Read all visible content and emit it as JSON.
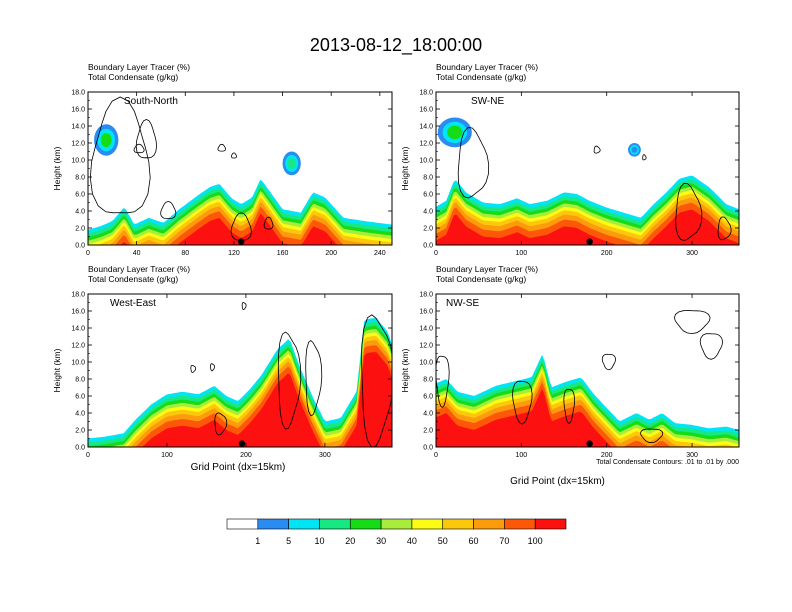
{
  "title": "2013-08-12_18:00:00",
  "colors": {
    "levels": [
      "#ffffff",
      "#2a8cf2",
      "#00e4f4",
      "#18e884",
      "#16dc16",
      "#a8ec3c",
      "#fcfc14",
      "#fcc80c",
      "#fc9c0c",
      "#fc5808",
      "#fc1010"
    ],
    "contour": "#000000"
  },
  "chart_data": [
    {
      "type": "heatmap",
      "panel": "South-North",
      "label": "South-North",
      "var1": "Boundary Layer Tracer   (%)",
      "var2": "Total Condensate   (g/kg)",
      "ylabel": "Height (km)",
      "xlim": [
        0,
        250
      ],
      "ylim": [
        0,
        18
      ],
      "xticks": [
        "0",
        "40",
        "80",
        "120",
        "160",
        "200",
        "240"
      ],
      "xtick_values": [
        0,
        40,
        80,
        120,
        160,
        200,
        240
      ],
      "yticks": [
        "0.0",
        "2.0",
        "4.0",
        "6.0",
        "8.0",
        "10.0",
        "12.0",
        "14.0",
        "16.0",
        "18.0"
      ],
      "marker_x": 126,
      "profile": [
        [
          0,
          1.8
        ],
        [
          10,
          2.2
        ],
        [
          20,
          2.8
        ],
        [
          30,
          4.5
        ],
        [
          38,
          2.4
        ],
        [
          50,
          3.2
        ],
        [
          62,
          2.6
        ],
        [
          75,
          4.2
        ],
        [
          90,
          5.8
        ],
        [
          100,
          6.8
        ],
        [
          108,
          7.2
        ],
        [
          118,
          5.5
        ],
        [
          126,
          4.8
        ],
        [
          135,
          5.6
        ],
        [
          142,
          7.8
        ],
        [
          150,
          6.2
        ],
        [
          160,
          4.2
        ],
        [
          175,
          3.8
        ],
        [
          185,
          6.2
        ],
        [
          195,
          5.6
        ],
        [
          210,
          3.2
        ],
        [
          228,
          2.8
        ],
        [
          250,
          2.4
        ]
      ],
      "blobs": [
        {
          "x0": 5,
          "x1": 25,
          "y0": 10.5,
          "y1": 14.2,
          "v": 30
        },
        {
          "x0": 160,
          "x1": 175,
          "y0": 8.2,
          "y1": 11.0,
          "v": 20
        }
      ],
      "contours": [
        {
          "x0": 3,
          "x1": 50,
          "y0": 3.0,
          "y1": 16.6
        },
        {
          "x0": 40,
          "x1": 56,
          "y0": 10.0,
          "y1": 14.5
        },
        {
          "x0": 38,
          "x1": 46,
          "y0": 10.8,
          "y1": 11.8
        },
        {
          "x0": 107,
          "x1": 113,
          "y0": 11.0,
          "y1": 11.8
        },
        {
          "x0": 118,
          "x1": 122,
          "y0": 10.2,
          "y1": 10.8
        },
        {
          "x0": 118,
          "x1": 134,
          "y0": 0.4,
          "y1": 3.6
        },
        {
          "x0": 145,
          "x1": 152,
          "y0": 1.8,
          "y1": 3.2
        },
        {
          "x0": 60,
          "x1": 72,
          "y0": 3.0,
          "y1": 5.0
        }
      ]
    },
    {
      "type": "heatmap",
      "panel": "SW-NE",
      "label": "SW-NE",
      "var1": "Boundary Layer Tracer   (%)",
      "var2": "Total Condensate   (g/kg)",
      "ylabel": "Height (km)",
      "xlim": [
        0,
        355
      ],
      "ylim": [
        0,
        18
      ],
      "xticks": [
        "0",
        "100",
        "200",
        "300"
      ],
      "xtick_values": [
        0,
        100,
        200,
        300
      ],
      "yticks": [
        "0.0",
        "2.0",
        "4.0",
        "6.0",
        "8.0",
        "10.0",
        "12.0",
        "14.0",
        "16.0",
        "18.0"
      ],
      "marker_x": 180,
      "profile": [
        [
          0,
          4.5
        ],
        [
          12,
          5.2
        ],
        [
          22,
          7.8
        ],
        [
          35,
          6.2
        ],
        [
          55,
          5.0
        ],
        [
          75,
          4.8
        ],
        [
          95,
          5.5
        ],
        [
          110,
          4.8
        ],
        [
          130,
          5.2
        ],
        [
          150,
          6.2
        ],
        [
          165,
          6.0
        ],
        [
          180,
          5.2
        ],
        [
          200,
          4.4
        ],
        [
          220,
          3.8
        ],
        [
          240,
          3.2
        ],
        [
          255,
          4.8
        ],
        [
          270,
          6.2
        ],
        [
          285,
          7.8
        ],
        [
          300,
          8.2
        ],
        [
          320,
          6.8
        ],
        [
          340,
          4.8
        ],
        [
          355,
          4.2
        ]
      ],
      "blobs": [
        {
          "x0": 2,
          "x1": 42,
          "y0": 11.5,
          "y1": 15.0,
          "v": 30
        },
        {
          "x0": 225,
          "x1": 240,
          "y0": 10.4,
          "y1": 12.0,
          "v": 5
        }
      ],
      "contours": [
        {
          "x0": 25,
          "x1": 60,
          "y0": 5.5,
          "y1": 13.5
        },
        {
          "x0": 185,
          "x1": 192,
          "y0": 10.8,
          "y1": 11.6
        },
        {
          "x0": 242,
          "x1": 246,
          "y0": 10.0,
          "y1": 10.6
        },
        {
          "x0": 280,
          "x1": 310,
          "y0": 0.5,
          "y1": 7.0
        },
        {
          "x0": 330,
          "x1": 345,
          "y0": 0.6,
          "y1": 3.2
        }
      ]
    },
    {
      "type": "heatmap",
      "panel": "West-East",
      "label": "West-East",
      "var1": "Boundary Layer Tracer   (%)",
      "var2": "Total Condensate   (g/kg)",
      "ylabel": "Height (km)",
      "xlim": [
        0,
        385
      ],
      "ylim": [
        0,
        18
      ],
      "xticks": [
        "0",
        "100",
        "200",
        "300"
      ],
      "xtick_values": [
        0,
        100,
        200,
        300
      ],
      "yticks": [
        "0.0",
        "2.0",
        "4.0",
        "6.0",
        "8.0",
        "10.0",
        "12.0",
        "14.0",
        "16.0",
        "18.0"
      ],
      "marker_x": 195,
      "profile": [
        [
          0,
          1.0
        ],
        [
          20,
          1.2
        ],
        [
          45,
          1.6
        ],
        [
          60,
          3.2
        ],
        [
          80,
          5.0
        ],
        [
          100,
          6.2
        ],
        [
          120,
          6.5
        ],
        [
          140,
          6.2
        ],
        [
          160,
          7.2
        ],
        [
          175,
          6.0
        ],
        [
          190,
          5.4
        ],
        [
          205,
          6.8
        ],
        [
          220,
          8.5
        ],
        [
          240,
          11.5
        ],
        [
          255,
          12.8
        ],
        [
          268,
          9.5
        ],
        [
          285,
          5.8
        ],
        [
          300,
          3.0
        ],
        [
          320,
          3.4
        ],
        [
          340,
          6.5
        ],
        [
          350,
          15.0
        ],
        [
          365,
          15.2
        ],
        [
          380,
          13.5
        ],
        [
          385,
          12.0
        ]
      ],
      "blobs": [],
      "contours": [
        {
          "x0": 240,
          "x1": 268,
          "y0": 2.5,
          "y1": 13.5
        },
        {
          "x0": 275,
          "x1": 295,
          "y0": 4.0,
          "y1": 12.5
        },
        {
          "x0": 345,
          "x1": 385,
          "y0": 0.5,
          "y1": 15.5
        },
        {
          "x0": 130,
          "x1": 136,
          "y0": 8.8,
          "y1": 9.6
        },
        {
          "x0": 155,
          "x1": 160,
          "y0": 9.0,
          "y1": 9.8
        },
        {
          "x0": 195,
          "x1": 200,
          "y0": 16.2,
          "y1": 17.0
        },
        {
          "x0": 160,
          "x1": 175,
          "y0": 1.5,
          "y1": 4.0
        }
      ]
    },
    {
      "type": "heatmap",
      "panel": "NW-SE",
      "label": "NW-SE",
      "var1": "Boundary Layer Tracer   (%)",
      "var2": "Total Condensate   (g/kg)",
      "ylabel": "Height (km)",
      "xlabel": "Grid Point (dx=15km)",
      "xlim": [
        0,
        355
      ],
      "ylim": [
        0,
        18
      ],
      "xticks": [
        "0",
        "100",
        "200",
        "300"
      ],
      "xtick_values": [
        0,
        100,
        200,
        300
      ],
      "yticks": [
        "0.0",
        "2.0",
        "4.0",
        "6.0",
        "8.0",
        "10.0",
        "12.0",
        "14.0",
        "16.0",
        "18.0"
      ],
      "marker_x": 180,
      "profile": [
        [
          0,
          7.5
        ],
        [
          12,
          8.0
        ],
        [
          25,
          6.5
        ],
        [
          45,
          6.0
        ],
        [
          70,
          7.2
        ],
        [
          95,
          7.8
        ],
        [
          112,
          8.2
        ],
        [
          125,
          11.0
        ],
        [
          135,
          7.0
        ],
        [
          150,
          7.6
        ],
        [
          170,
          8.2
        ],
        [
          185,
          6.2
        ],
        [
          200,
          4.6
        ],
        [
          215,
          3.0
        ],
        [
          235,
          4.0
        ],
        [
          250,
          3.2
        ],
        [
          265,
          4.0
        ],
        [
          280,
          2.8
        ],
        [
          300,
          2.6
        ],
        [
          320,
          2.2
        ],
        [
          340,
          2.4
        ],
        [
          355,
          2.0
        ]
      ],
      "blobs": [],
      "contours": [
        {
          "x0": 0,
          "x1": 15,
          "y0": 5.0,
          "y1": 11.0
        },
        {
          "x0": 90,
          "x1": 112,
          "y0": 3.0,
          "y1": 8.0
        },
        {
          "x0": 150,
          "x1": 162,
          "y0": 3.0,
          "y1": 7.0
        },
        {
          "x0": 195,
          "x1": 210,
          "y0": 9.2,
          "y1": 11.0
        },
        {
          "x0": 280,
          "x1": 320,
          "y0": 13.5,
          "y1": 16.2
        },
        {
          "x0": 310,
          "x1": 335,
          "y0": 10.5,
          "y1": 13.5
        },
        {
          "x0": 240,
          "x1": 265,
          "y0": 0.6,
          "y1": 2.2
        }
      ]
    }
  ],
  "shared_xlabel": "Grid Point (dx=15km)",
  "contour_note": "Total Condensate Contours: .01 to .01 by .000",
  "colorbar_labels": [
    "1",
    "5",
    "10",
    "20",
    "30",
    "40",
    "50",
    "60",
    "70",
    "100"
  ]
}
